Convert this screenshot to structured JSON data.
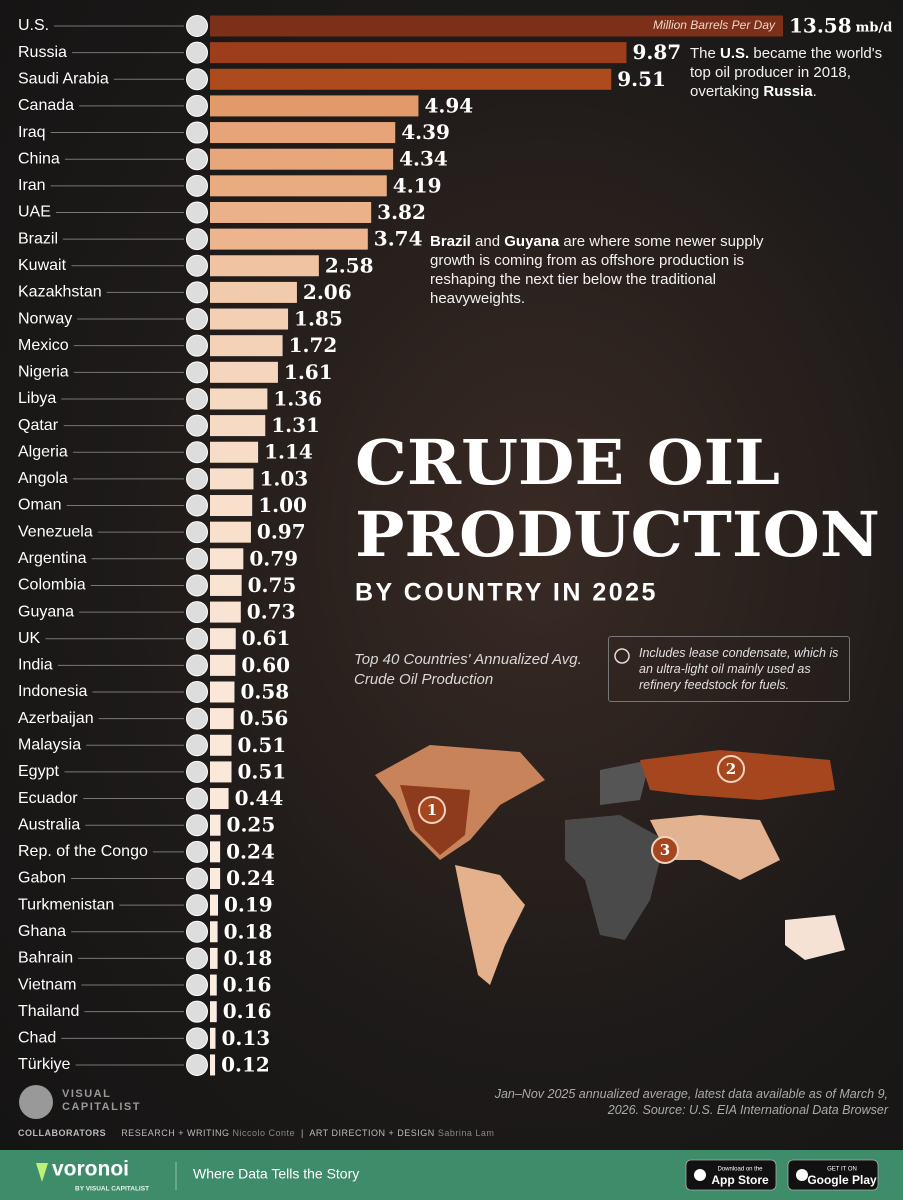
{
  "chart_data": {
    "type": "bar",
    "orientation": "horizontal",
    "title": [
      "CRUDE OIL",
      "PRODUCTION"
    ],
    "title_sub": "BY COUNTRY IN 2025",
    "subtitle": "Top 40 Countries' Annualized Avg. Crude Oil Production",
    "unit_label": "Million Barrels Per Day",
    "unit_suffix": "mb/d",
    "categories": [
      "U.S.",
      "Russia",
      "Saudi Arabia",
      "Canada",
      "Iraq",
      "China",
      "Iran",
      "UAE",
      "Brazil",
      "Kuwait",
      "Kazakhstan",
      "Norway",
      "Mexico",
      "Nigeria",
      "Libya",
      "Qatar",
      "Algeria",
      "Angola",
      "Oman",
      "Venezuela",
      "Argentina",
      "Colombia",
      "Guyana",
      "UK",
      "India",
      "Indonesia",
      "Azerbaijan",
      "Malaysia",
      "Egypt",
      "Ecuador",
      "Australia",
      "Rep. of the Congo",
      "Gabon",
      "Turkmenistan",
      "Ghana",
      "Bahrain",
      "Vietnam",
      "Thailand",
      "Chad",
      "Türkiye"
    ],
    "values": [
      13.58,
      9.87,
      9.51,
      4.94,
      4.39,
      4.34,
      4.19,
      3.82,
      3.74,
      2.58,
      2.06,
      1.85,
      1.72,
      1.61,
      1.36,
      1.31,
      1.14,
      1.03,
      1.0,
      0.97,
      0.79,
      0.75,
      0.73,
      0.61,
      0.6,
      0.58,
      0.56,
      0.51,
      0.51,
      0.44,
      0.25,
      0.24,
      0.24,
      0.19,
      0.18,
      0.18,
      0.16,
      0.16,
      0.13,
      0.12
    ],
    "value_labels": [
      "13.58",
      "9.87",
      "9.51",
      "4.94",
      "4.39",
      "4.34",
      "4.19",
      "3.82",
      "3.74",
      "2.58",
      "2.06",
      "1.85",
      "1.72",
      "1.61",
      "1.36",
      "1.31",
      "1.14",
      "1.03",
      "1.00",
      "0.97",
      "0.79",
      "0.75",
      "0.73",
      "0.61",
      "0.60",
      "0.58",
      "0.56",
      "0.51",
      "0.51",
      "0.44",
      "0.25",
      "0.24",
      "0.24",
      "0.19",
      "0.18",
      "0.18",
      "0.16",
      "0.16",
      "0.13",
      "0.12"
    ],
    "colors": [
      "#7c2f19",
      "#9c3e1c",
      "#ad4a1e",
      "#e39a6b",
      "#e7a478",
      "#e8a77b",
      "#e9ab80",
      "#ebb28a",
      "#ecb58e",
      "#f0c3a2",
      "#f2cbad",
      "#f3cfb3",
      "#f4d2b8",
      "#f5d5bd",
      "#f6d9c3",
      "#f6dac4",
      "#f7ddc8",
      "#f7dfcb",
      "#f8e0cc",
      "#f8e0cd",
      "#f9e3d1",
      "#f9e4d2",
      "#f9e4d3",
      "#f9e6d6",
      "#f9e6d6",
      "#fae7d7",
      "#fae7d8",
      "#fae8d9",
      "#fae8d9",
      "#fae9db",
      "#fbebde",
      "#fbebde",
      "#fbebde",
      "#fbecdf",
      "#fbece0",
      "#fbece0",
      "#fbece0",
      "#fbece0",
      "#fbede1",
      "#fbede1"
    ]
  },
  "map_labels": [
    1,
    2,
    3
  ],
  "annotations": [
    [
      "The ",
      "U.S.",
      " became the world's top oil producer in 2018, overtaking ",
      "Russia",
      "."
    ],
    [
      "Brazil",
      " and ",
      "Guyana",
      " are where some newer supply growth is coming from as offshore production is reshaping the next tier below the traditional heavyweights."
    ]
  ],
  "note": "Includes lease condensate, which is an ultra-light oil mainly used as refinery feedstock for fuels.",
  "source": "Jan–Nov 2025 annualized average, latest data available as of March 9, 2026. Source: U.S. EIA International Data Browser",
  "footer": {
    "brand": [
      "VISUAL",
      "CAPITALIST"
    ],
    "collaborators": "COLLABORATORS",
    "credits": [
      "RESEARCH + WRITING",
      "Niccolo Conte",
      "ART DIRECTION + DESIGN",
      "Sabrina Lam"
    ],
    "voronoi": "voronoi",
    "voronoi_by": "BY VISUAL CAPITALIST",
    "tagline": "Where Data Tells the Story",
    "app_store": [
      "Download on the",
      "App Store"
    ],
    "google_play": [
      "GET IT ON",
      "Google Play"
    ]
  }
}
